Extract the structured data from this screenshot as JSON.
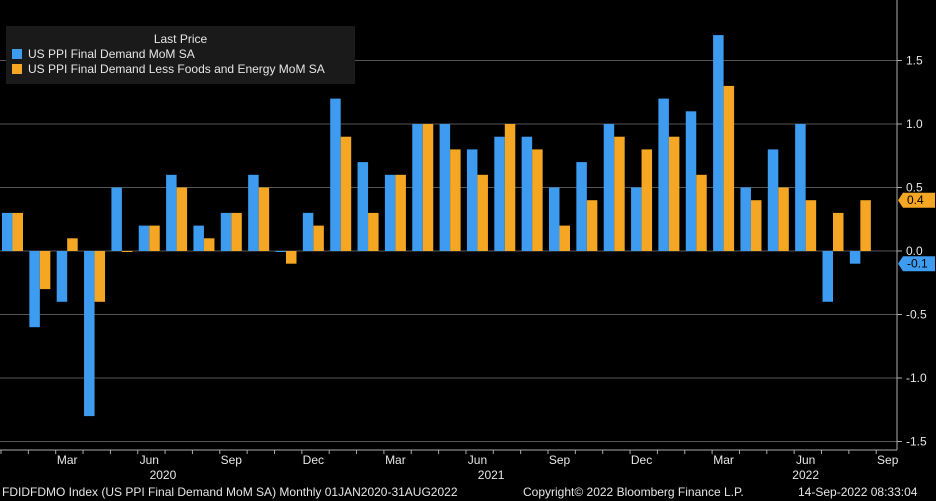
{
  "chart_data": {
    "type": "bar",
    "legend_title": "Last Price",
    "legend_position": "top-left",
    "months": [
      "Jan 2020",
      "Feb 2020",
      "Mar 2020",
      "Apr 2020",
      "May 2020",
      "Jun 2020",
      "Jul 2020",
      "Aug 2020",
      "Sep 2020",
      "Oct 2020",
      "Nov 2020",
      "Dec 2020",
      "Jan 2021",
      "Feb 2021",
      "Mar 2021",
      "Apr 2021",
      "May 2021",
      "Jun 2021",
      "Jul 2021",
      "Aug 2021",
      "Sep 2021",
      "Oct 2021",
      "Nov 2021",
      "Dec 2021",
      "Jan 2022",
      "Feb 2022",
      "Mar 2022",
      "Apr 2022",
      "May 2022",
      "Jun 2022",
      "Jul 2022",
      "Aug 2022"
    ],
    "series": [
      {
        "name": "US PPI Final Demand MoM SA",
        "color": "#3d9bf0",
        "values": [
          0.3,
          -0.6,
          -0.4,
          -1.3,
          0.5,
          0.2,
          0.6,
          0.2,
          0.3,
          0.6,
          0.0,
          0.3,
          1.2,
          0.7,
          0.6,
          1.0,
          1.0,
          0.8,
          0.9,
          0.9,
          0.5,
          0.7,
          1.0,
          0.5,
          1.2,
          1.1,
          1.7,
          0.5,
          0.8,
          1.0,
          -0.4,
          -0.1
        ]
      },
      {
        "name": "US PPI Final Demand Less Foods and Energy MoM SA",
        "color": "#f5a623",
        "values": [
          0.3,
          -0.3,
          0.1,
          -0.4,
          0.0,
          0.2,
          0.5,
          0.1,
          0.3,
          0.5,
          -0.1,
          0.2,
          0.9,
          0.3,
          0.6,
          1.0,
          0.8,
          0.6,
          1.0,
          0.8,
          0.2,
          0.4,
          0.9,
          0.8,
          0.9,
          0.6,
          1.3,
          0.4,
          0.5,
          0.4,
          0.3,
          0.4
        ]
      }
    ],
    "ylim": [
      -1.5,
      1.9
    ],
    "yticks": [
      "1.5",
      "1.0",
      "0.5",
      "0.0",
      "-0.5",
      "-1.0",
      "-1.5"
    ],
    "ytick_values": [
      1.5,
      1.0,
      0.5,
      0.0,
      -0.5,
      -1.0,
      -1.5
    ],
    "x_month_labels": [
      {
        "label": "Mar",
        "index": 2
      },
      {
        "label": "Jun",
        "index": 5
      },
      {
        "label": "Sep",
        "index": 8
      },
      {
        "label": "Dec",
        "index": 11
      },
      {
        "label": "Mar",
        "index": 14
      },
      {
        "label": "Jun",
        "index": 17
      },
      {
        "label": "Sep",
        "index": 20
      },
      {
        "label": "Dec",
        "index": 23
      },
      {
        "label": "Mar",
        "index": 26
      },
      {
        "label": "Jun",
        "index": 29
      },
      {
        "label": "Sep",
        "index": 32
      }
    ],
    "x_year_labels": [
      {
        "label": "2020",
        "index": 5.5
      },
      {
        "label": "2021",
        "index": 17.5
      },
      {
        "label": "2022",
        "index": 29
      }
    ],
    "last_value_tags": [
      {
        "text": "0.4",
        "value": 0.4,
        "color": "#f5a623"
      },
      {
        "text": "-0.1",
        "value": -0.1,
        "color": "#3d9bf0"
      }
    ],
    "grid": true
  },
  "footer": {
    "left": "FDIDFDMO Index (US PPI Final Demand MoM SA)  Monthly 01JAN2020-31AUG2022",
    "center": "Copyright© 2022 Bloomberg Finance L.P.",
    "right": "14-Sep-2022 08:33:04"
  }
}
